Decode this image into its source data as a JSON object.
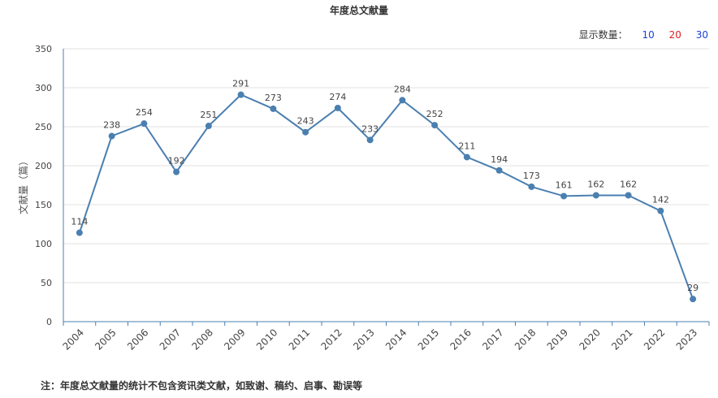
{
  "title": "年度总文献量",
  "count_selector": {
    "label": "显示数量：",
    "options": [
      "10",
      "20",
      "30"
    ],
    "colors": [
      "#1a3fd6",
      "#e02020",
      "#1a3fd6"
    ]
  },
  "note": "注：年度总文献量的统计不包含资讯类文献，如致谢、稿约、启事、勘误等",
  "chart_data": {
    "type": "line",
    "title": "年度总文献量",
    "xlabel": "",
    "ylabel": "文献量（篇）",
    "ylim": [
      0,
      350
    ],
    "yticks": [
      0,
      50,
      100,
      150,
      200,
      250,
      300,
      350
    ],
    "categories": [
      "2004",
      "2005",
      "2006",
      "2007",
      "2008",
      "2009",
      "2010",
      "2011",
      "2012",
      "2013",
      "2014",
      "2015",
      "2016",
      "2017",
      "2018",
      "2019",
      "2020",
      "2021",
      "2022",
      "2023"
    ],
    "series": [
      {
        "values": [
          114,
          238,
          254,
          192,
          251,
          291,
          273,
          243,
          274,
          233,
          284,
          252,
          211,
          194,
          173,
          161,
          162,
          162,
          142,
          29
        ]
      }
    ],
    "line_color": "#4a7fb0",
    "grid": true
  }
}
